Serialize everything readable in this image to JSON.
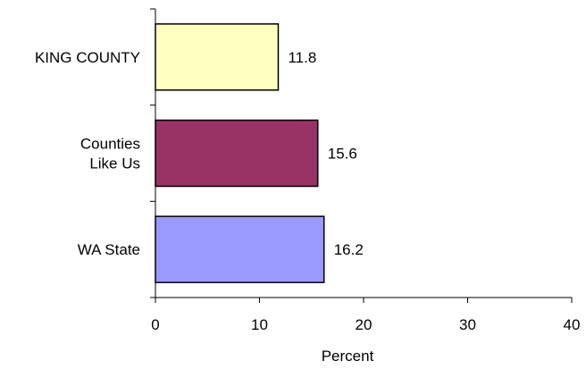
{
  "chart_data": {
    "type": "bar",
    "orientation": "horizontal",
    "categories": [
      "KING COUNTY",
      "Counties Like Us",
      "WA State"
    ],
    "category_lines": [
      [
        "KING COUNTY"
      ],
      [
        "Counties",
        "Like Us"
      ],
      [
        "WA State"
      ]
    ],
    "values": [
      11.8,
      15.6,
      16.2
    ],
    "data_labels": [
      "11.8",
      "15.6",
      "16.2"
    ],
    "bar_colors": [
      "#FFFFC0",
      "#993366",
      "#9999FF"
    ],
    "xlabel": "Percent",
    "ylabel": "",
    "xlim": [
      0,
      40
    ],
    "x_ticks": [
      0,
      10,
      20,
      30,
      40
    ],
    "x_tick_labels": [
      "0",
      "10",
      "20",
      "30",
      "40"
    ],
    "grid": false,
    "legend": "none"
  }
}
